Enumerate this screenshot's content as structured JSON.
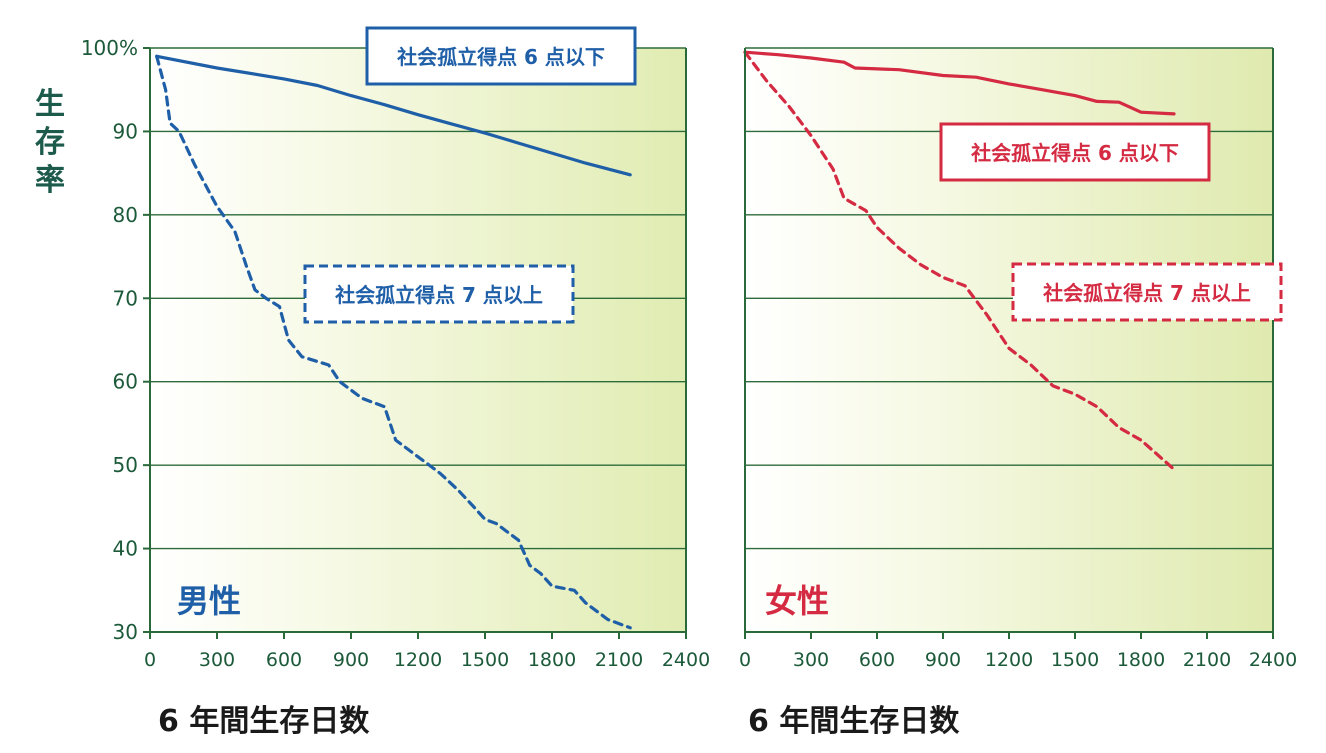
{
  "chart_data": [
    {
      "type": "line",
      "panel_label": "男性",
      "ylabel": "生存率",
      "xlabel": "6 年間生存日数",
      "xlim": [
        0,
        2400
      ],
      "ylim": [
        30,
        100
      ],
      "x_ticks": [
        "0",
        "300",
        "600",
        "900",
        "1200",
        "1500",
        "1800",
        "2100",
        "2400"
      ],
      "y_ticks": [
        "30",
        "40",
        "50",
        "60",
        "70",
        "80",
        "90",
        "100%"
      ],
      "grid": true,
      "colors": {
        "main": "#1f5fa8"
      },
      "series": [
        {
          "name": "社会孤立得点 6 点以下",
          "style": "solid",
          "x": [
            30,
            300,
            600,
            750,
            900,
            1050,
            1200,
            1350,
            1500,
            1650,
            1800,
            1950,
            2150
          ],
          "y": [
            99,
            97.6,
            96.3,
            95.5,
            94.3,
            93.2,
            92.0,
            90.9,
            89.8,
            88.6,
            87.4,
            86.2,
            84.8
          ]
        },
        {
          "name": "社会孤立得点 7 点以上",
          "style": "dashed",
          "x": [
            30,
            70,
            90,
            130,
            200,
            300,
            380,
            430,
            470,
            520,
            580,
            620,
            680,
            800,
            850,
            950,
            1050,
            1100,
            1200,
            1250,
            1300,
            1380,
            1450,
            1500,
            1550,
            1600,
            1650,
            1700,
            1750,
            1800,
            1900,
            1950,
            2050,
            2150
          ],
          "y": [
            99,
            95,
            91,
            90,
            86,
            81,
            78,
            74,
            71,
            70,
            69,
            65,
            63,
            62,
            60,
            58,
            57,
            53,
            51,
            50,
            49,
            47,
            45,
            43.5,
            43,
            42,
            41,
            38,
            37,
            35.5,
            35,
            33.5,
            31.5,
            30.5
          ]
        }
      ]
    },
    {
      "type": "line",
      "panel_label": "女性",
      "xlabel": "6 年間生存日数",
      "xlim": [
        0,
        2400
      ],
      "ylim": [
        30,
        100
      ],
      "x_ticks": [
        "0",
        "300",
        "600",
        "900",
        "1200",
        "1500",
        "1800",
        "2100",
        "2400"
      ],
      "grid": true,
      "colors": {
        "main": "#d42a42"
      },
      "series": [
        {
          "name": "社会孤立得点 6 点以下",
          "style": "solid",
          "x": [
            0,
            150,
            300,
            450,
            500,
            700,
            900,
            1050,
            1200,
            1350,
            1500,
            1600,
            1700,
            1800,
            1950
          ],
          "y": [
            99.5,
            99.2,
            98.8,
            98.3,
            97.6,
            97.4,
            96.7,
            96.5,
            95.7,
            95.0,
            94.3,
            93.6,
            93.5,
            92.3,
            92.1
          ]
        },
        {
          "name": "社会孤立得点 7 点以上",
          "style": "dashed",
          "x": [
            0,
            100,
            200,
            300,
            400,
            450,
            550,
            600,
            700,
            800,
            900,
            1000,
            1100,
            1200,
            1300,
            1400,
            1500,
            1600,
            1700,
            1800,
            1950
          ],
          "y": [
            99.5,
            96,
            93,
            89.5,
            85.5,
            82,
            80.5,
            78.5,
            76,
            74,
            72.5,
            71.5,
            68,
            64,
            62,
            59.5,
            58.5,
            57,
            54.5,
            53,
            49.5
          ]
        }
      ]
    }
  ]
}
